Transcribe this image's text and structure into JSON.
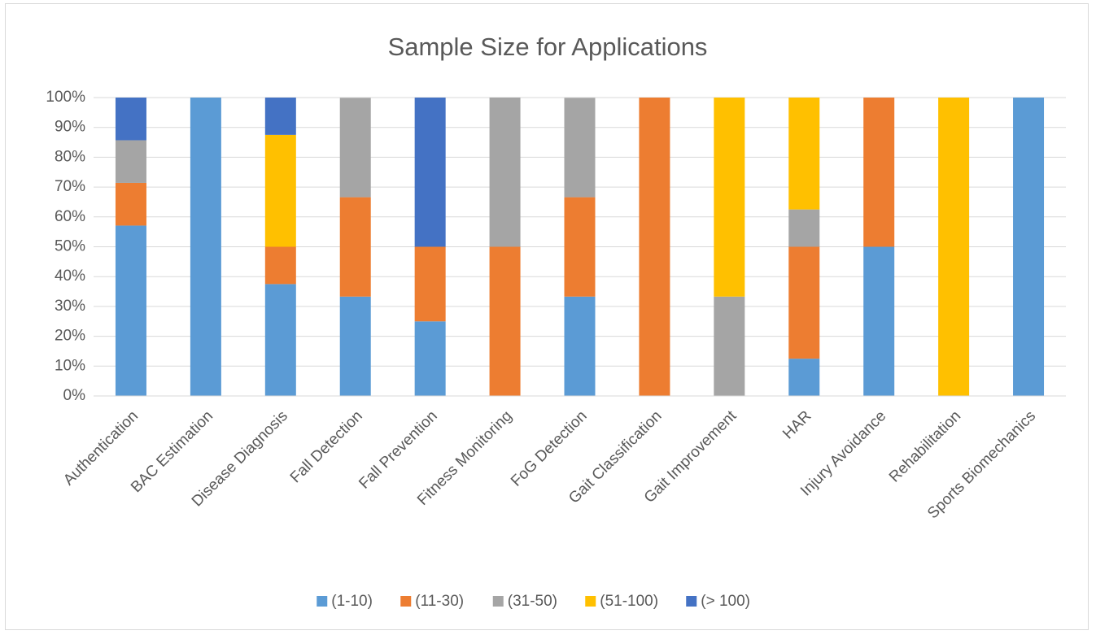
{
  "chart_data": {
    "type": "stacked_bar",
    "title": "Sample Size for Applications",
    "categories": [
      "Authentication",
      "BAC Estimation",
      "Disease Diagnosis",
      "Fall Detection",
      "Fall Prevention",
      "Fitness Monitoring",
      "FoG Detection",
      "Gait Classification",
      "Gait Improvement",
      "HAR",
      "Injury Avoidance",
      "Rehabilitation",
      "Sports Biomechanics"
    ],
    "series": [
      {
        "name": "(1-10)",
        "color": "#5b9bd5",
        "values": [
          57.1,
          100,
          37.5,
          33.3,
          25,
          0,
          33.3,
          0,
          0,
          12.5,
          50,
          0,
          100
        ]
      },
      {
        "name": "(11-30)",
        "color": "#ed7d31",
        "values": [
          14.3,
          0,
          12.5,
          33.3,
          25,
          50,
          33.3,
          100,
          0,
          37.5,
          50,
          0,
          0
        ]
      },
      {
        "name": "(31-50)",
        "color": "#a5a5a5",
        "values": [
          14.3,
          0,
          0,
          33.3,
          0,
          50,
          33.3,
          0,
          33.3,
          12.5,
          0,
          0,
          0
        ]
      },
      {
        "name": "(51-100)",
        "color": "#ffc000",
        "values": [
          0,
          0,
          37.5,
          0,
          0,
          0,
          0,
          0,
          66.7,
          37.5,
          0,
          100,
          0
        ]
      },
      {
        "name": "(> 100)",
        "color": "#4472c4",
        "values": [
          14.3,
          0,
          12.5,
          0,
          50,
          0,
          0,
          0,
          0,
          0,
          0,
          0,
          0
        ]
      }
    ],
    "ylim": [
      0,
      100
    ],
    "yticks": [
      {
        "value": 0,
        "label": "0%"
      },
      {
        "value": 10,
        "label": "10%"
      },
      {
        "value": 20,
        "label": "20%"
      },
      {
        "value": 30,
        "label": "30%"
      },
      {
        "value": 40,
        "label": "40%"
      },
      {
        "value": 50,
        "label": "50%"
      },
      {
        "value": 60,
        "label": "60%"
      },
      {
        "value": 70,
        "label": "70%"
      },
      {
        "value": 80,
        "label": "80%"
      },
      {
        "value": 90,
        "label": "90%"
      },
      {
        "value": 100,
        "label": "100%"
      }
    ],
    "grid": true,
    "legend": "bottom"
  }
}
